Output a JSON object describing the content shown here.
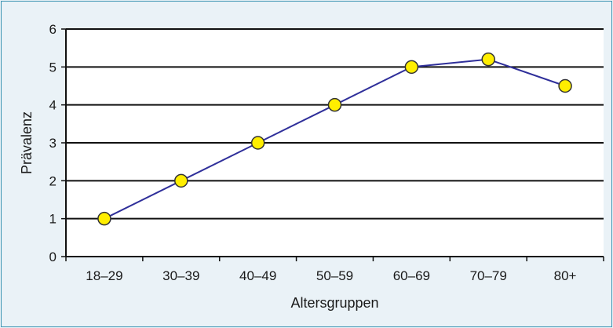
{
  "chart_data": {
    "type": "line",
    "title": "",
    "xlabel": "Altersgruppen",
    "ylabel": "Prävalenz",
    "categories": [
      "18–29",
      "30–39",
      "40–49",
      "50–59",
      "60–69",
      "70–79",
      "80+"
    ],
    "series": [
      {
        "values": [
          1.0,
          2.0,
          3.0,
          4.0,
          5.0,
          5.2,
          4.5
        ]
      }
    ],
    "ylim": [
      0,
      6
    ],
    "yticks": [
      "0",
      "1",
      "2",
      "3",
      "4",
      "5",
      "6"
    ],
    "grid": true,
    "legend": "none",
    "colors": {
      "line": "#2f2f9a",
      "marker_fill": "#ffee00",
      "marker_stroke": "#333333",
      "plot_background": "#ffffff",
      "frame_border": "#3f95b3",
      "page_background": "#eaf2f7"
    }
  }
}
